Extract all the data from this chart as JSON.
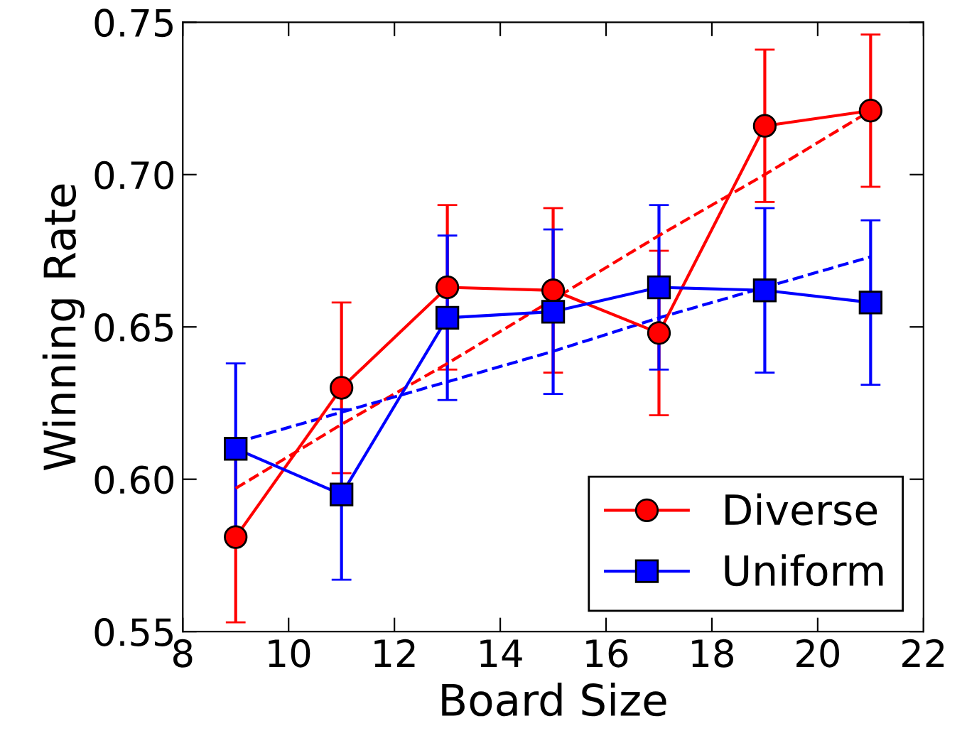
{
  "chart_data": {
    "type": "line",
    "xlabel": "Board Size",
    "ylabel": "Winning Rate",
    "x": [
      9,
      11,
      13,
      15,
      17,
      19,
      21
    ],
    "series": [
      {
        "name": "Diverse",
        "color": "#ff0000",
        "marker": "circle",
        "values": [
          0.581,
          0.63,
          0.663,
          0.662,
          0.648,
          0.716,
          0.721
        ],
        "errors": [
          0.028,
          0.028,
          0.027,
          0.027,
          0.027,
          0.025,
          0.025
        ]
      },
      {
        "name": "Uniform",
        "color": "#0000ff",
        "marker": "square",
        "values": [
          0.61,
          0.595,
          0.653,
          0.655,
          0.663,
          0.662,
          0.658
        ],
        "errors": [
          0.028,
          0.028,
          0.027,
          0.027,
          0.027,
          0.027,
          0.027
        ]
      },
      {
        "type": "line",
        "color": "#ff0000",
        "marker": "none",
        "line_style": "dashed",
        "values": [
          0.597,
          0.618,
          0.638,
          0.659,
          0.68,
          0.7,
          0.721
        ]
      },
      {
        "type": "line",
        "color": "#0000ff",
        "marker": "none",
        "line_style": "dashed",
        "values": [
          0.612,
          0.622,
          0.632,
          0.642,
          0.653,
          0.663,
          0.673
        ]
      }
    ],
    "xlim": [
      8,
      22
    ],
    "xticks": [
      8,
      10,
      12,
      14,
      16,
      18,
      20,
      22
    ],
    "ylim": [
      0.55,
      0.75
    ],
    "yticks": [
      {
        "value": 0.55,
        "label": "0.55"
      },
      {
        "value": 0.6,
        "label": "0.60"
      },
      {
        "value": 0.65,
        "label": "0.65"
      },
      {
        "value": 0.7,
        "label": "0.70"
      },
      {
        "value": 0.75,
        "label": "0.75"
      }
    ],
    "grid": false,
    "legend": "bottom right"
  }
}
